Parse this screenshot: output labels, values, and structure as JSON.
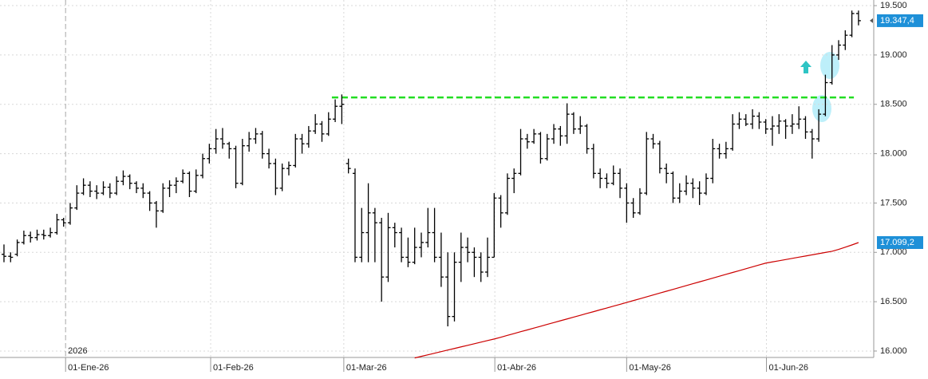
{
  "chart_data": {
    "type": "ohlc",
    "color": "#000000",
    "ohlc": [
      [
        16980,
        17080,
        16900,
        16960
      ],
      [
        16960,
        17000,
        16900,
        16950
      ],
      [
        16980,
        17130,
        16960,
        17100
      ],
      [
        17100,
        17220,
        17080,
        17170
      ],
      [
        17170,
        17210,
        17100,
        17150
      ],
      [
        17150,
        17230,
        17120,
        17180
      ],
      [
        17180,
        17230,
        17130,
        17170
      ],
      [
        17170,
        17250,
        17150,
        17200
      ],
      [
        17200,
        17390,
        17180,
        17330
      ],
      [
        17330,
        17350,
        17260,
        17300
      ],
      [
        17300,
        17500,
        17280,
        17450
      ],
      [
        17450,
        17680,
        17430,
        17600
      ],
      [
        17600,
        17750,
        17580,
        17680
      ],
      [
        17680,
        17720,
        17560,
        17620
      ],
      [
        17620,
        17680,
        17540,
        17600
      ],
      [
        17600,
        17720,
        17580,
        17660
      ],
      [
        17660,
        17700,
        17550,
        17600
      ],
      [
        17600,
        17770,
        17580,
        17720
      ],
      [
        17720,
        17830,
        17680,
        17770
      ],
      [
        17770,
        17790,
        17640,
        17700
      ],
      [
        17700,
        17720,
        17600,
        17650
      ],
      [
        17650,
        17700,
        17550,
        17600
      ],
      [
        17600,
        17620,
        17420,
        17500
      ],
      [
        17500,
        17520,
        17250,
        17420
      ],
      [
        17420,
        17700,
        17400,
        17650
      ],
      [
        17650,
        17730,
        17560,
        17680
      ],
      [
        17680,
        17760,
        17600,
        17720
      ],
      [
        17720,
        17840,
        17700,
        17800
      ],
      [
        17800,
        17820,
        17560,
        17620
      ],
      [
        17620,
        17840,
        17600,
        17780
      ],
      [
        17780,
        18000,
        17750,
        17950
      ],
      [
        17950,
        18100,
        17900,
        18050
      ],
      [
        18050,
        18250,
        18000,
        18150
      ],
      [
        18150,
        18260,
        18050,
        18100
      ],
      [
        18100,
        18120,
        17950,
        18050
      ],
      [
        18050,
        18080,
        17650,
        17700
      ],
      [
        17700,
        18150,
        17680,
        18080
      ],
      [
        18080,
        18220,
        18020,
        18150
      ],
      [
        18150,
        18260,
        18100,
        18200
      ],
      [
        18200,
        18230,
        17950,
        18000
      ],
      [
        18000,
        18050,
        17850,
        17900
      ],
      [
        17900,
        17950,
        17580,
        17650
      ],
      [
        17650,
        17900,
        17620,
        17850
      ],
      [
        17850,
        17920,
        17780,
        17880
      ],
      [
        17880,
        18200,
        17860,
        18150
      ],
      [
        18150,
        18200,
        18000,
        18100
      ],
      [
        18100,
        18280,
        18060,
        18230
      ],
      [
        18230,
        18400,
        18200,
        18300
      ],
      [
        18300,
        18330,
        18120,
        18200
      ],
      [
        18200,
        18420,
        18180,
        18350
      ],
      [
        18350,
        18550,
        18320,
        18480
      ],
      [
        18480,
        18600,
        18300,
        18500
      ],
      [
        17900,
        17950,
        17800,
        17850
      ],
      [
        17800,
        17850,
        16900,
        16950
      ],
      [
        16950,
        17450,
        16900,
        17200
      ],
      [
        17200,
        17700,
        16900,
        17400
      ],
      [
        17400,
        17450,
        16900,
        17300
      ],
      [
        17300,
        17350,
        16500,
        16750
      ],
      [
        16750,
        17400,
        16700,
        17250
      ],
      [
        17250,
        17300,
        17050,
        17200
      ],
      [
        17200,
        17250,
        16900,
        16950
      ],
      [
        16950,
        17150,
        16850,
        16900
      ],
      [
        16900,
        17250,
        16880,
        17050
      ],
      [
        17050,
        17200,
        16950,
        17100
      ],
      [
        17100,
        17450,
        17050,
        17200
      ],
      [
        17200,
        17450,
        16900,
        16950
      ],
      [
        16950,
        17200,
        16650,
        16750
      ],
      [
        16750,
        17000,
        16250,
        16350
      ],
      [
        16350,
        17000,
        16300,
        16900
      ],
      [
        16900,
        17200,
        16700,
        17050
      ],
      [
        17050,
        17150,
        16900,
        17000
      ],
      [
        17000,
        17050,
        16750,
        16950
      ],
      [
        16950,
        17000,
        16700,
        16800
      ],
      [
        16800,
        17150,
        16750,
        16950
      ],
      [
        16950,
        17600,
        16950,
        17550
      ],
      [
        17550,
        17580,
        17250,
        17400
      ],
      [
        17400,
        17800,
        17380,
        17750
      ],
      [
        17750,
        17850,
        17600,
        17800
      ],
      [
        17800,
        18250,
        17780,
        18150
      ],
      [
        18150,
        18200,
        18050,
        18120
      ],
      [
        18120,
        18250,
        18100,
        18200
      ],
      [
        18200,
        18220,
        17900,
        17950
      ],
      [
        17950,
        18200,
        17930,
        18150
      ],
      [
        18150,
        18300,
        18100,
        18250
      ],
      [
        18250,
        18280,
        18080,
        18180
      ],
      [
        18180,
        18510,
        18100,
        18400
      ],
      [
        18400,
        18420,
        18200,
        18250
      ],
      [
        18250,
        18380,
        18200,
        18280
      ],
      [
        18280,
        18300,
        18000,
        18050
      ],
      [
        18050,
        18100,
        17750,
        17800
      ],
      [
        17800,
        17850,
        17650,
        17750
      ],
      [
        17750,
        17800,
        17650,
        17700
      ],
      [
        17700,
        17880,
        17680,
        17800
      ],
      [
        17800,
        17850,
        17550,
        17650
      ],
      [
        17650,
        17700,
        17300,
        17500
      ],
      [
        17500,
        17550,
        17350,
        17400
      ],
      [
        17400,
        17650,
        17380,
        17600
      ],
      [
        17600,
        18220,
        17580,
        18150
      ],
      [
        18150,
        18200,
        18050,
        18100
      ],
      [
        18100,
        18130,
        17800,
        17850
      ],
      [
        17850,
        17900,
        17700,
        17800
      ],
      [
        17800,
        17820,
        17500,
        17550
      ],
      [
        17550,
        17700,
        17500,
        17620
      ],
      [
        17620,
        17780,
        17580,
        17700
      ],
      [
        17700,
        17750,
        17550,
        17650
      ],
      [
        17650,
        17720,
        17480,
        17600
      ],
      [
        17600,
        17800,
        17580,
        17750
      ],
      [
        17750,
        18150,
        17700,
        18050
      ],
      [
        18050,
        18100,
        17950,
        18000
      ],
      [
        18000,
        18120,
        17950,
        18050
      ],
      [
        18050,
        18400,
        18030,
        18300
      ],
      [
        18300,
        18420,
        18250,
        18350
      ],
      [
        18350,
        18400,
        18280,
        18300
      ],
      [
        18300,
        18450,
        18250,
        18380
      ],
      [
        18380,
        18420,
        18250,
        18320
      ],
      [
        18320,
        18350,
        18200,
        18250
      ],
      [
        18250,
        18380,
        18080,
        18280
      ],
      [
        18280,
        18400,
        18200,
        18330
      ],
      [
        18330,
        18350,
        18150,
        18280
      ],
      [
        18280,
        18400,
        18200,
        18300
      ],
      [
        18300,
        18480,
        18250,
        18350
      ],
      [
        18350,
        18380,
        18150,
        18220
      ],
      [
        18220,
        18250,
        17950,
        18150
      ],
      [
        18150,
        18450,
        18120,
        18400
      ],
      [
        18400,
        18800,
        18380,
        18720
      ],
      [
        18720,
        19100,
        18700,
        19000
      ],
      [
        19000,
        19150,
        18950,
        19100
      ],
      [
        19100,
        19250,
        19050,
        19200
      ],
      [
        19200,
        19450,
        19180,
        19420
      ],
      [
        19420,
        19450,
        19300,
        19347.4
      ]
    ],
    "last_price_label": "19.347,4",
    "last_price_color": "#1e90d8",
    "moving_average": {
      "color": "#cc0000",
      "last_label": "17.099,2",
      "values": [
        null,
        null,
        null,
        null,
        null,
        null,
        null,
        null,
        null,
        null,
        null,
        null,
        null,
        null,
        null,
        null,
        null,
        null,
        null,
        null,
        null,
        null,
        null,
        null,
        null,
        null,
        null,
        null,
        null,
        null,
        null,
        null,
        null,
        null,
        null,
        null,
        null,
        null,
        null,
        null,
        null,
        null,
        null,
        null,
        null,
        null,
        null,
        null,
        null,
        null,
        null,
        null,
        null,
        null,
        null,
        null,
        null,
        null,
        null,
        null,
        null,
        null,
        15930,
        15946,
        15962,
        15978,
        15994,
        16010,
        16026,
        16042,
        16058,
        16074,
        16090,
        16106,
        16122,
        16140,
        16159,
        16177,
        16196,
        16214,
        16233,
        16251,
        16270,
        16288,
        16307,
        16325,
        16344,
        16362,
        16381,
        16399,
        16418,
        16436,
        16455,
        16473,
        16492,
        16511,
        16530,
        16549,
        16568,
        16587,
        16606,
        16625,
        16644,
        16663,
        16682,
        16701,
        16720,
        16739,
        16758,
        16777,
        16796,
        16815,
        16834,
        16853,
        16872,
        16891,
        16903,
        16915,
        16927,
        16939,
        16951,
        16963,
        16975,
        16987,
        16999,
        17011,
        17030,
        17052,
        17075,
        17099.2
      ]
    },
    "resistance": {
      "value": 18570,
      "color": "#22dd22"
    },
    "year_label": "2026",
    "xlim": [
      -0.6,
      131.3
    ],
    "ylim": [
      15935,
      19557
    ],
    "xticks": [
      {
        "value": 9.3,
        "label": "01-Ene-26"
      },
      {
        "value": 31.2,
        "label": "01-Feb-26"
      },
      {
        "value": 51.3,
        "label": "01-Mar-26"
      },
      {
        "value": 74.1,
        "label": "01-Abr-26"
      },
      {
        "value": 94,
        "label": "01-May-26"
      },
      {
        "value": 115.1,
        "label": "01-Jun-26"
      }
    ],
    "yticks": [
      {
        "value": 16000,
        "label": "16.000"
      },
      {
        "value": 16500,
        "label": "16.500"
      },
      {
        "value": 17000,
        "label": "17.000"
      },
      {
        "value": 17500,
        "label": "17.500"
      },
      {
        "value": 18000,
        "label": "18.000"
      },
      {
        "value": 18500,
        "label": "18.500"
      },
      {
        "value": 19000,
        "label": "19.000"
      },
      {
        "value": 19500,
        "label": "19.500"
      }
    ],
    "grid": true
  }
}
